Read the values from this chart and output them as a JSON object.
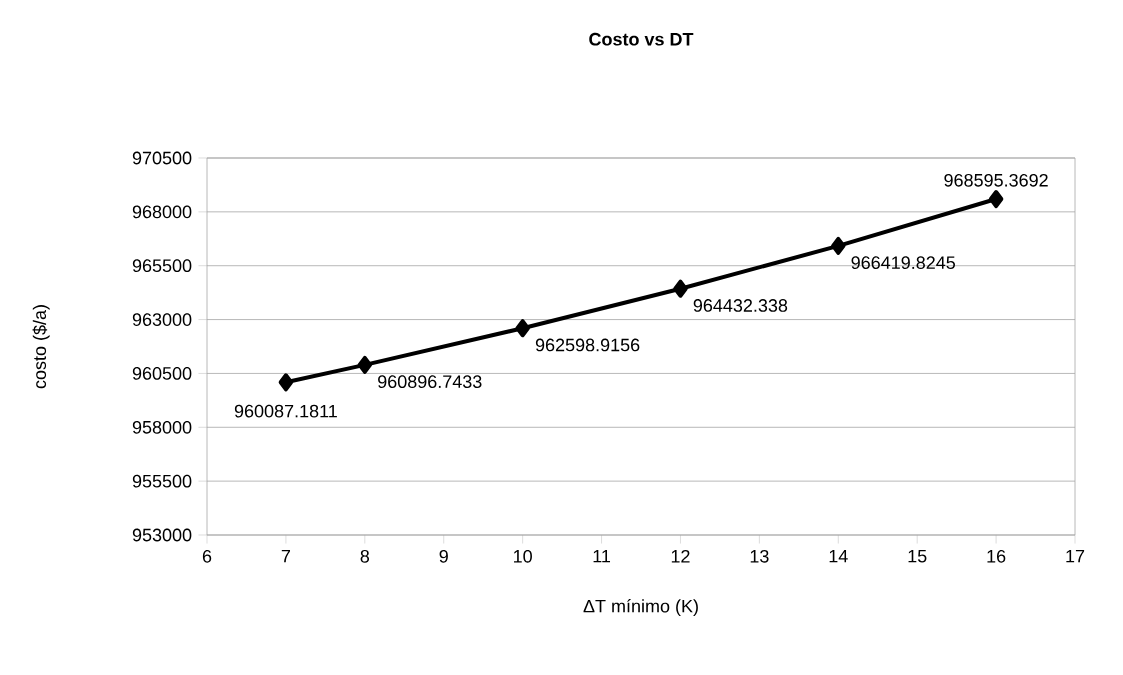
{
  "chart_data": {
    "type": "line",
    "title": "Costo vs DT",
    "xlabel": "ΔT mínimo (K)",
    "ylabel": "costo ($/a)",
    "x": [
      7,
      8,
      10,
      12,
      14,
      16
    ],
    "values": [
      960087.1811,
      960896.7433,
      962598.9156,
      964432.338,
      966419.8245,
      968595.3692
    ],
    "color": "#000000",
    "xlim": [
      6,
      17
    ],
    "xticks": [
      6,
      7,
      8,
      9,
      10,
      11,
      12,
      13,
      14,
      15,
      16,
      17
    ],
    "ylim": [
      953000,
      970500
    ],
    "yticks": [
      953000,
      955500,
      958000,
      960500,
      963000,
      965500,
      968000,
      970500
    ],
    "grid": "y",
    "marker": "diamond",
    "line_style": "solid",
    "data_labels": true
  }
}
